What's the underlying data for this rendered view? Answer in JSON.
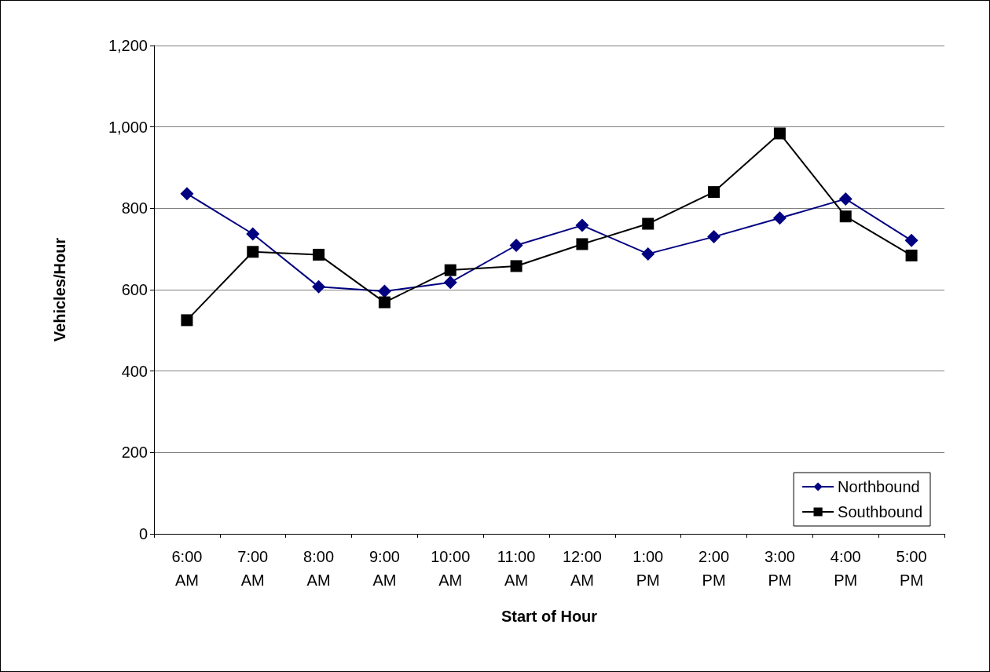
{
  "chart_data": {
    "type": "line",
    "xlabel": "Start of Hour",
    "ylabel": "Vehicles/Hour",
    "categories": [
      "6:00\nAM",
      "7:00\nAM",
      "8:00\nAM",
      "9:00\nAM",
      "10:00\nAM",
      "11:00\nAM",
      "12:00\nAM",
      "1:00\nPM",
      "2:00\nPM",
      "3:00\nPM",
      "4:00\nPM",
      "5:00\nPM"
    ],
    "series": [
      {
        "name": "Northbound",
        "color": "#000080",
        "marker": "diamond",
        "values": [
          836,
          737,
          607,
          596,
          618,
          709,
          758,
          688,
          730,
          776,
          823,
          721
        ]
      },
      {
        "name": "Southbound",
        "color": "#000000",
        "marker": "square",
        "values": [
          525,
          693,
          686,
          569,
          648,
          658,
          712,
          762,
          840,
          984,
          780,
          684
        ]
      }
    ],
    "ylim": [
      0,
      1200
    ],
    "yticks": [
      0,
      200,
      400,
      600,
      800,
      {
        "value": 1000,
        "label": "1,000"
      },
      {
        "value": 1200,
        "label": "1,200"
      }
    ],
    "grid": "y",
    "legend": "bottom right",
    "line_style": "solid"
  }
}
